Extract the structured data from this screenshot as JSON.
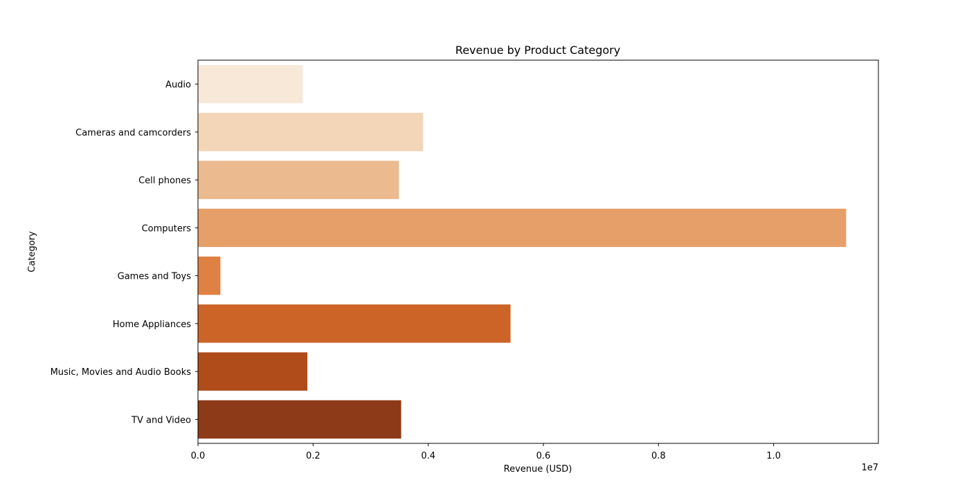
{
  "chart_data": {
    "type": "bar",
    "orientation": "horizontal",
    "title": "Revenue by Product Category",
    "xlabel": "Revenue (USD)",
    "ylabel": "Category",
    "x_offset_text": "1e7",
    "xlim": [
      0,
      11820000
    ],
    "x_ticks": [
      0,
      2000000,
      4000000,
      6000000,
      8000000,
      10000000
    ],
    "x_tick_labels": [
      "0.0",
      "0.2",
      "0.4",
      "0.6",
      "0.8",
      "1.0"
    ],
    "grid": false,
    "categories": [
      "Audio",
      "Cameras and camcorders",
      "Cell phones",
      "Computers",
      "Games and Toys",
      "Home Appliances",
      "Music, Movies and Audio Books",
      "TV and Video"
    ],
    "values": [
      1820000,
      3910000,
      3490000,
      11260000,
      390000,
      5430000,
      1900000,
      3530000
    ],
    "colors": [
      "#f8e8d8",
      "#f3d5b7",
      "#ecba8f",
      "#e69f69",
      "#df8143",
      "#cc6428",
      "#b04b1a",
      "#8d3a18"
    ]
  }
}
